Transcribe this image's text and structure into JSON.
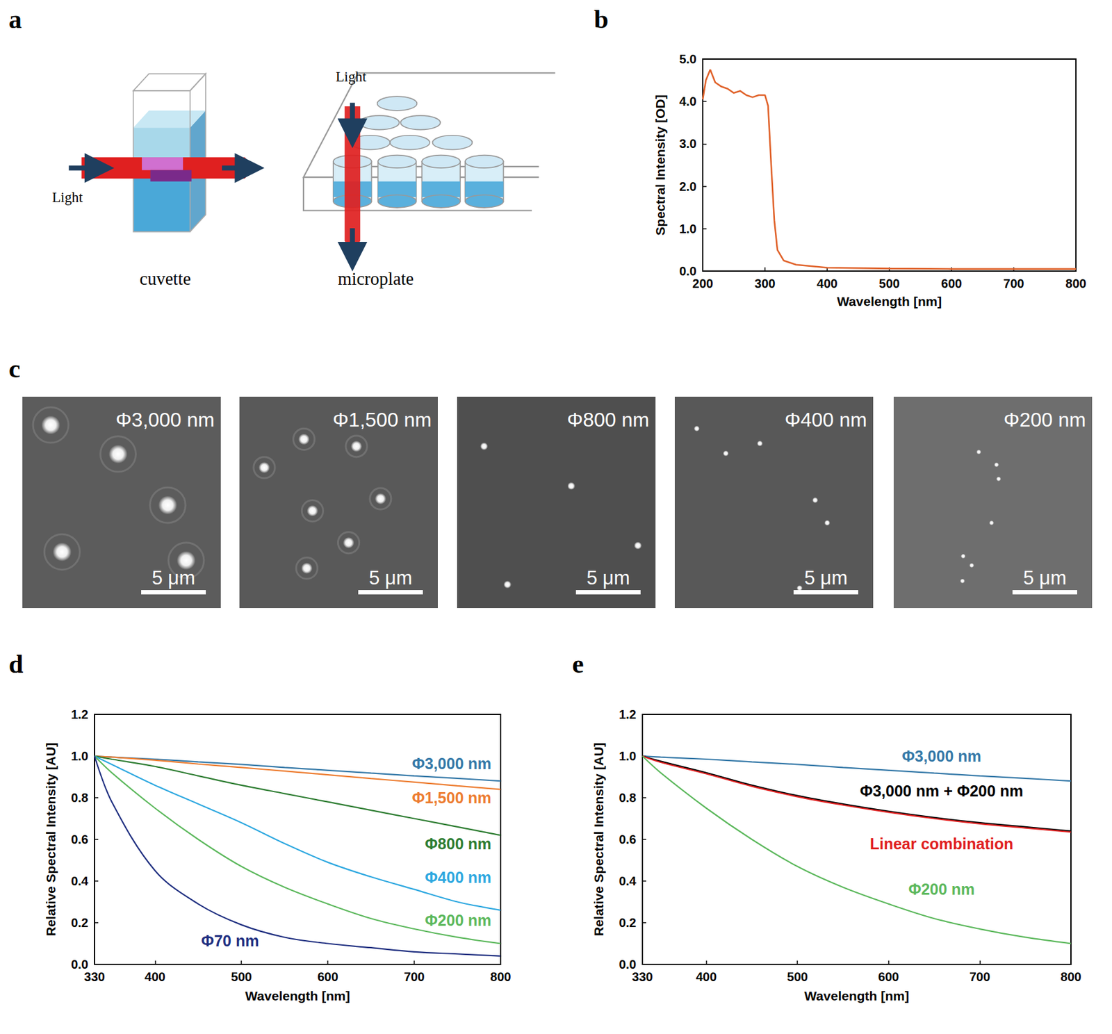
{
  "diagram": {
    "panel": "a",
    "cuvette": {
      "light_label": "Light",
      "caption": "cuvette"
    },
    "microplate": {
      "light_label": "Light",
      "caption": "microplate"
    }
  },
  "micrographs": {
    "panel": "c",
    "images": [
      {
        "label": "Φ3,000 nm",
        "diameter_nm": 3000,
        "scale_bar": "5 μm"
      },
      {
        "label": "Φ1,500 nm",
        "diameter_nm": 1500,
        "scale_bar": "5 μm"
      },
      {
        "label": "Φ800 nm",
        "diameter_nm": 800,
        "scale_bar": "5 μm"
      },
      {
        "label": "Φ400 nm",
        "diameter_nm": 400,
        "scale_bar": "5 μm"
      },
      {
        "label": "Φ200 nm",
        "diameter_nm": 200,
        "scale_bar": "5 μm"
      }
    ]
  },
  "chart_data": [
    {
      "panel": "b",
      "type": "line",
      "x_label": "Wavelength [nm]",
      "y_label": "Spectral Intensity [OD]",
      "x": [
        200,
        205,
        212,
        220,
        230,
        240,
        250,
        260,
        270,
        280,
        290,
        300,
        305,
        310,
        315,
        320,
        330,
        350,
        400,
        500,
        600,
        700,
        800
      ],
      "values": [
        4.05,
        4.5,
        4.75,
        4.45,
        4.35,
        4.3,
        4.2,
        4.25,
        4.15,
        4.1,
        4.15,
        4.15,
        3.9,
        2.5,
        1.2,
        0.5,
        0.25,
        0.15,
        0.08,
        0.06,
        0.05,
        0.05,
        0.05
      ],
      "color": "#e0622a",
      "line_style": "solid",
      "xlim": [
        200,
        800
      ],
      "xticks": [
        200,
        300,
        400,
        500,
        600,
        700,
        800
      ],
      "ylim": [
        0,
        5
      ],
      "yticks": [
        {
          "value": 0,
          "label": "0.0"
        },
        {
          "value": 1,
          "label": "1.0"
        },
        {
          "value": 2,
          "label": "2.0"
        },
        {
          "value": 3,
          "label": "3.0"
        },
        {
          "value": 4,
          "label": "4.0"
        },
        {
          "value": 5,
          "label": "5.0"
        }
      ],
      "grid": false
    },
    {
      "panel": "d",
      "type": "line",
      "x_label": "Wavelength [nm]",
      "y_label": "Relative Spectral Intensity [AU]",
      "x": [
        330,
        350,
        400,
        450,
        500,
        550,
        600,
        650,
        700,
        750,
        800
      ],
      "series": [
        {
          "name": "Φ3,000 nm",
          "color": "#3579a8",
          "values": [
            1,
            0.995,
            0.985,
            0.972,
            0.96,
            0.945,
            0.932,
            0.918,
            0.905,
            0.893,
            0.88
          ]
        },
        {
          "name": "Φ1,500 nm",
          "color": "#ed7d31",
          "values": [
            1,
            0.995,
            0.98,
            0.962,
            0.945,
            0.928,
            0.91,
            0.892,
            0.875,
            0.857,
            0.84
          ]
        },
        {
          "name": "Φ800 nm",
          "color": "#2e7d32",
          "values": [
            1,
            0.985,
            0.95,
            0.905,
            0.86,
            0.82,
            0.78,
            0.74,
            0.7,
            0.66,
            0.62
          ]
        },
        {
          "name": "Φ400 nm",
          "color": "#2ea8e0",
          "values": [
            1,
            0.96,
            0.86,
            0.77,
            0.68,
            0.58,
            0.49,
            0.42,
            0.36,
            0.3,
            0.26
          ]
        },
        {
          "name": "Φ200 nm",
          "color": "#5cb85c",
          "values": [
            1,
            0.92,
            0.75,
            0.6,
            0.47,
            0.37,
            0.29,
            0.22,
            0.17,
            0.13,
            0.1
          ]
        },
        {
          "name": "Φ70 nm",
          "color": "#1f2f80",
          "values": [
            1,
            0.78,
            0.45,
            0.29,
            0.19,
            0.13,
            0.1,
            0.08,
            0.06,
            0.05,
            0.04
          ]
        }
      ],
      "line_style": "smooth",
      "xlim": [
        330,
        800
      ],
      "xticks": [
        330,
        400,
        500,
        600,
        700,
        800
      ],
      "ylim": [
        0,
        1.2
      ],
      "yticks": [
        {
          "value": 0,
          "label": "0.0"
        },
        {
          "value": 0.2,
          "label": "0.2"
        },
        {
          "value": 0.4,
          "label": "0.4"
        },
        {
          "value": 0.6,
          "label": "0.6"
        },
        {
          "value": 0.8,
          "label": "0.8"
        },
        {
          "value": 1,
          "label": "1.0"
        },
        {
          "value": 1.2,
          "label": "1.2"
        }
      ],
      "grid": false
    },
    {
      "panel": "e",
      "type": "line",
      "x_label": "Wavelength [nm]",
      "y_label": "Relative Spectral Intensity [AU]",
      "x": [
        330,
        350,
        400,
        450,
        500,
        550,
        600,
        650,
        700,
        750,
        800
      ],
      "series": [
        {
          "name": "Φ3,000 nm",
          "color": "#3579a8",
          "values": [
            1,
            0.995,
            0.985,
            0.972,
            0.96,
            0.945,
            0.932,
            0.918,
            0.905,
            0.893,
            0.88
          ]
        },
        {
          "name": "Φ3,000 nm + Φ200 nm",
          "color": "#000000",
          "values": [
            1,
            0.975,
            0.92,
            0.86,
            0.81,
            0.77,
            0.735,
            0.705,
            0.68,
            0.66,
            0.64
          ]
        },
        {
          "name": "Linear combination",
          "color": "#e02020",
          "values": [
            1,
            0.97,
            0.915,
            0.855,
            0.805,
            0.765,
            0.73,
            0.7,
            0.675,
            0.655,
            0.635
          ]
        },
        {
          "name": "Φ200 nm",
          "color": "#5cb85c",
          "values": [
            1,
            0.92,
            0.75,
            0.6,
            0.47,
            0.37,
            0.29,
            0.22,
            0.17,
            0.13,
            0.1
          ]
        }
      ],
      "line_style": "smooth",
      "xlim": [
        330,
        800
      ],
      "xticks": [
        330,
        400,
        500,
        600,
        700,
        800
      ],
      "ylim": [
        0,
        1.2
      ],
      "yticks": [
        {
          "value": 0,
          "label": "0.0"
        },
        {
          "value": 0.2,
          "label": "0.2"
        },
        {
          "value": 0.4,
          "label": "0.4"
        },
        {
          "value": 0.6,
          "label": "0.6"
        },
        {
          "value": 0.8,
          "label": "0.8"
        },
        {
          "value": 1,
          "label": "1.0"
        },
        {
          "value": 1.2,
          "label": "1.2"
        }
      ],
      "grid": false
    }
  ]
}
